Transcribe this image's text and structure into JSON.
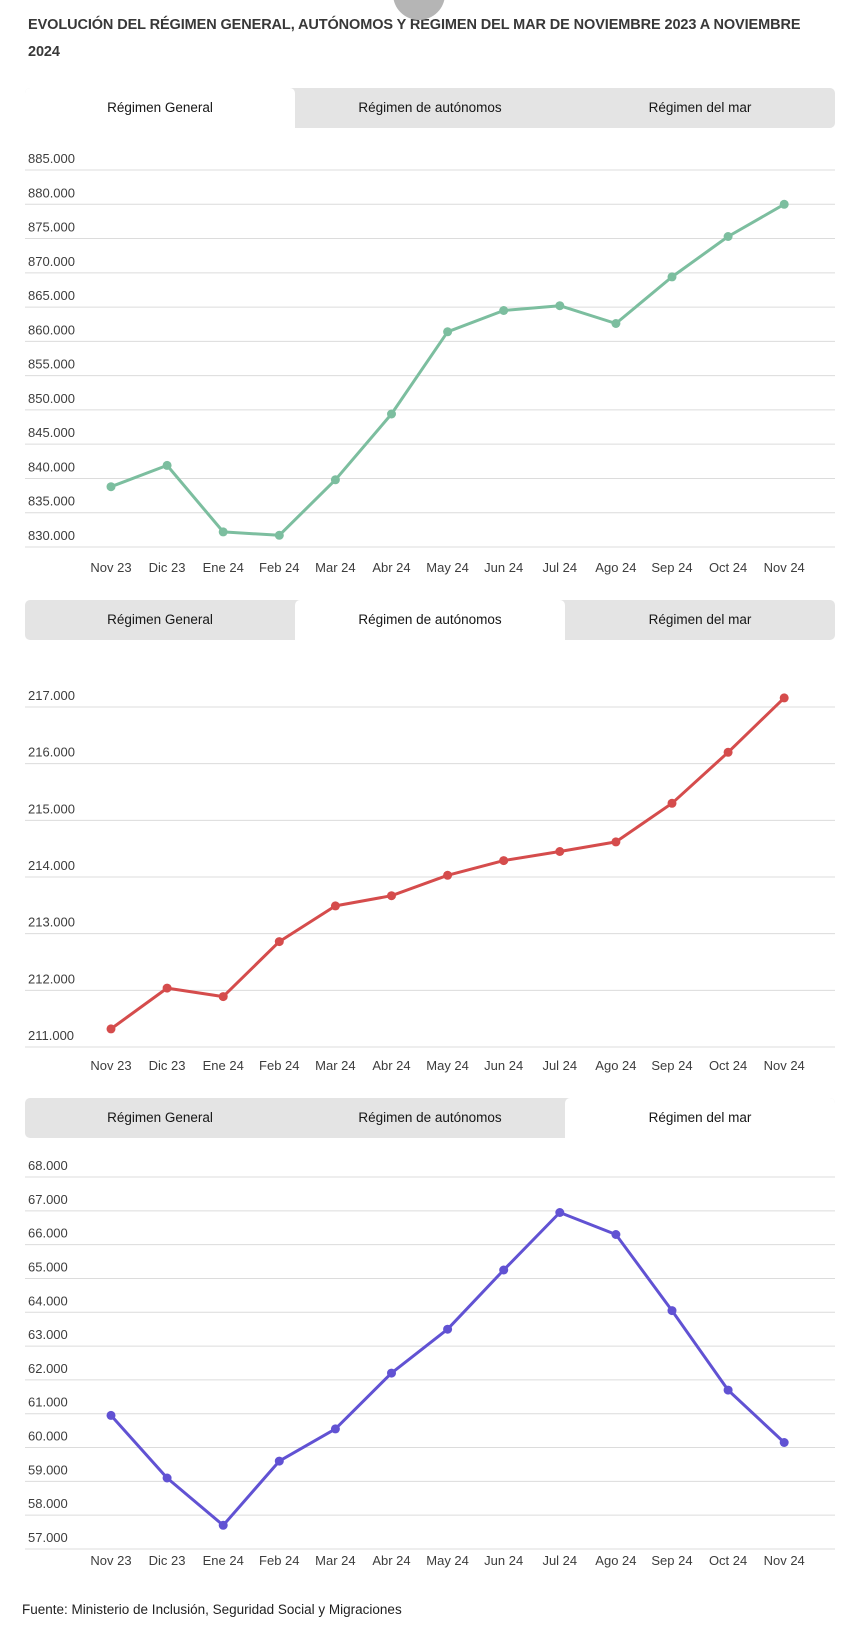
{
  "page": {
    "title": "EVOLUCIÓN DEL RÉGIMEN GENERAL, AUTÓNOMOS Y RÉGIMEN DEL MAR DE NOVIEMBRE 2023 A NOVIEMBRE 2024",
    "source": "Fuente: Ministerio de Inclusión, Seguridad Social y Migraciones"
  },
  "tabs": [
    "Régimen General",
    "Régimen de autónomos",
    "Régimen del mar"
  ],
  "colors": {
    "general_line": "#7cbe9f",
    "autonomos_line": "#d54c4c",
    "mar_line": "#6152d3",
    "grid_line": "#dcdcdc",
    "tab_bar_bg": "#e4e4e4",
    "tab_active_bg": "#ffffff",
    "tick_text": "#3d3d3d"
  },
  "chart_data": [
    {
      "id": "regimen-general",
      "type": "line",
      "tab_label": "Régimen General",
      "active_tab": 0,
      "legend": "none",
      "grid": true,
      "categories": [
        "Nov 23",
        "Dic 23",
        "Ene 24",
        "Feb 24",
        "Mar 24",
        "Abr 24",
        "May 24",
        "Jun 24",
        "Jul 24",
        "Ago 24",
        "Sep 24",
        "Oct 24",
        "Nov 24"
      ],
      "values": [
        838800,
        841900,
        832200,
        831700,
        839800,
        849400,
        861400,
        864500,
        865200,
        862600,
        869400,
        875300,
        880000
      ],
      "yticks": [
        885000,
        880000,
        875000,
        870000,
        865000,
        860000,
        855000,
        850000,
        845000,
        840000,
        835000,
        830000
      ],
      "ytick_labels": [
        "885.000",
        "880.000",
        "875.000",
        "870.000",
        "865.000",
        "860.000",
        "855.000",
        "850.000",
        "845.000",
        "840.000",
        "835.000",
        "830.000"
      ],
      "ylim": [
        830000,
        885000
      ],
      "color": "#7cbe9f"
    },
    {
      "id": "regimen-autonomos",
      "type": "line",
      "tab_label": "Régimen de autónomos",
      "active_tab": 1,
      "legend": "none",
      "grid": true,
      "categories": [
        "Nov 23",
        "Dic 23",
        "Ene 24",
        "Feb 24",
        "Mar 24",
        "Abr 24",
        "May 24",
        "Jun 24",
        "Jul 24",
        "Ago 24",
        "Sep 24",
        "Oct 24",
        "Nov 24"
      ],
      "values": [
        211320,
        212040,
        211890,
        212860,
        213490,
        213670,
        214030,
        214290,
        214450,
        214620,
        215300,
        216200,
        217160
      ],
      "yticks": [
        217000,
        216000,
        215000,
        214000,
        213000,
        212000,
        211000
      ],
      "ytick_labels": [
        "217.000",
        "216.000",
        "215.000",
        "214.000",
        "213.000",
        "212.000",
        "211.000"
      ],
      "ylim": [
        211000,
        217000
      ],
      "color": "#d54c4c"
    },
    {
      "id": "regimen-del-mar",
      "type": "line",
      "tab_label": "Régimen del mar",
      "active_tab": 2,
      "legend": "none",
      "grid": true,
      "categories": [
        "Nov 23",
        "Dic 23",
        "Ene 24",
        "Feb 24",
        "Mar 24",
        "Abr 24",
        "May 24",
        "Jun 24",
        "Jul 24",
        "Ago 24",
        "Sep 24",
        "Oct 24",
        "Nov 24"
      ],
      "values": [
        60950,
        59100,
        57700,
        59600,
        60550,
        62200,
        63500,
        65250,
        66950,
        66300,
        64050,
        61700,
        60150
      ],
      "yticks": [
        68000,
        67000,
        66000,
        65000,
        64000,
        63000,
        62000,
        61000,
        60000,
        59000,
        58000,
        57000
      ],
      "ytick_labels": [
        "68.000",
        "67.000",
        "66.000",
        "65.000",
        "64.000",
        "63.000",
        "62.000",
        "61.000",
        "60.000",
        "59.000",
        "58.000",
        "57.000"
      ],
      "ylim": [
        57000,
        68000
      ],
      "color": "#6152d3"
    }
  ]
}
